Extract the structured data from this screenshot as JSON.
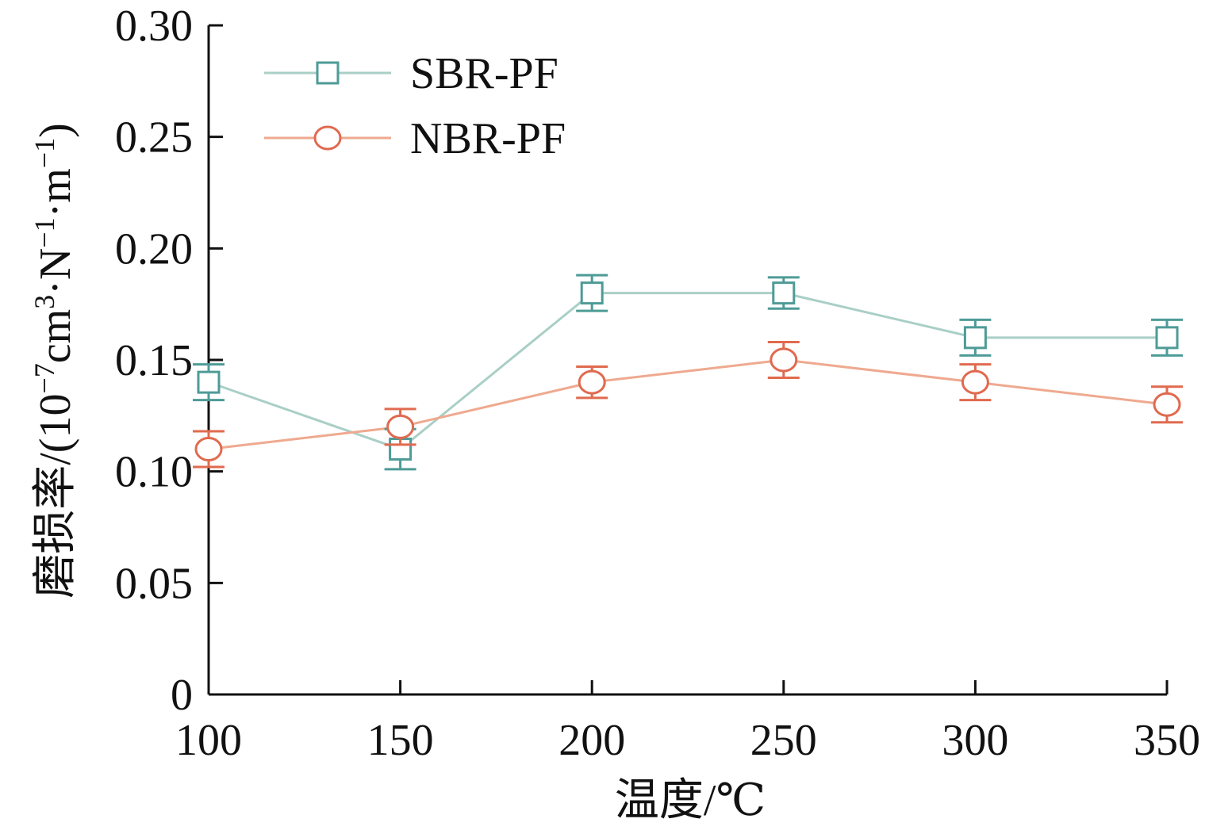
{
  "chart_data": {
    "type": "line",
    "x": [
      100,
      150,
      200,
      250,
      300,
      350
    ],
    "xlim": [
      100,
      350
    ],
    "ylim": [
      0,
      0.3
    ],
    "xticks": [
      "100",
      "150",
      "200",
      "250",
      "300",
      "350"
    ],
    "yticks": [
      "0",
      "0.05",
      "0.10",
      "0.15",
      "0.20",
      "0.25",
      "0.30"
    ],
    "xlabel": "温度/℃",
    "ylabel": {
      "prefix": "磨损率/(10",
      "sup1": "−7",
      "unit1": "cm",
      "sup2": "3",
      "unit2": "·N",
      "sup3": "−1",
      "unit3": "·m",
      "sup4": "−1",
      "suffix": ")"
    },
    "grid": false,
    "legend_position": "top-left",
    "series": [
      {
        "name": "SBR-PF",
        "marker": "square",
        "line_color": "#a9cfc6",
        "marker_color": "#4e9b97",
        "values": [
          0.14,
          0.11,
          0.18,
          0.18,
          0.16,
          0.16
        ],
        "errors": [
          0.008,
          0.009,
          0.008,
          0.007,
          0.008,
          0.008
        ]
      },
      {
        "name": "NBR-PF",
        "marker": "circle",
        "line_color": "#efa98f",
        "marker_color": "#e06a4f",
        "values": [
          0.11,
          0.12,
          0.14,
          0.15,
          0.14,
          0.13
        ],
        "errors": [
          0.008,
          0.008,
          0.007,
          0.008,
          0.008,
          0.008
        ]
      }
    ]
  }
}
